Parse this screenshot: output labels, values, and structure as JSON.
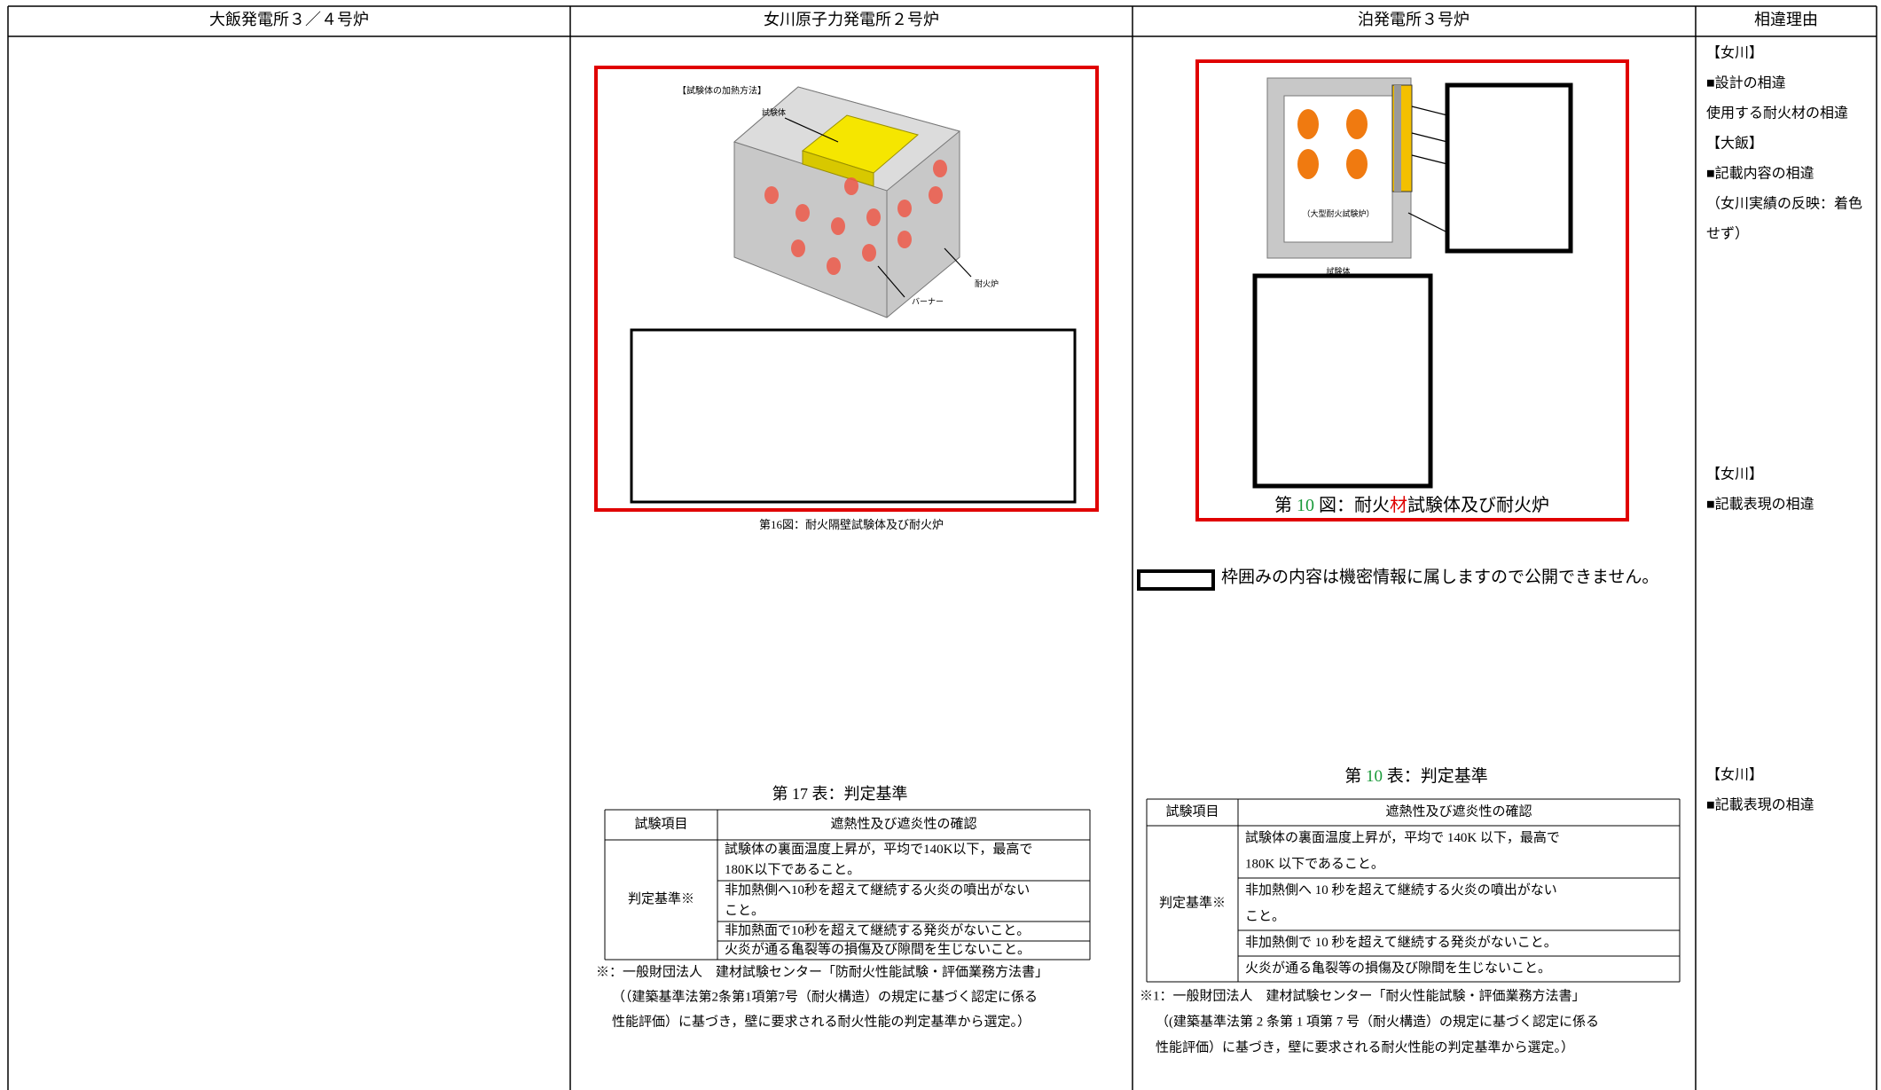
{
  "header": {
    "columns": [
      "大飯発電所３／４号炉",
      "女川原子力発電所２号炉",
      "泊発電所３号炉",
      "相違理由"
    ]
  },
  "onagawa_figure": {
    "heading": "【試験体の加熱方法】",
    "specimen": "試験体",
    "burner": "バーナー",
    "furnace": "耐火炉",
    "caption": "第16図：耐火隔壁試験体及び耐火炉"
  },
  "tomari_figure": {
    "furnace_label": "（大型耐火試験炉）",
    "specimen": "試験体",
    "caption_parts": [
      {
        "text": "第 ",
        "color": "#000000"
      },
      {
        "text": "10",
        "color": "#1a9a3a"
      },
      {
        "text": " 図：耐火",
        "color": "#000000"
      },
      {
        "text": "材",
        "color": "#e00000"
      },
      {
        "text": "試験体及び耐火炉",
        "color": "#000000"
      }
    ],
    "confidential_note": "枠囲みの内容は機密情報に属しますので公開できません。"
  },
  "reasons": {
    "row1": [
      [
        {
          "text": "【女川】",
          "color": "#e00000"
        },
        {
          "text": "■設計の相違",
          "color": "#e00000"
        },
        {
          "text": "使用する耐火材の相違",
          "color": "#e00000"
        },
        {
          "text": "【大飯】",
          "color": "#1aa0e0"
        },
        {
          "text": "■記載内容の相違",
          "color": "#1aa0e0"
        },
        {
          "text": "（女川実績の反映：着色",
          "color": "#1aa0e0"
        },
        {
          "text": "せず）",
          "color": "#1aa0e0"
        }
      ],
      [
        {
          "text": "【女川】",
          "color": "#1a9a3a"
        },
        {
          "text": "■記載表現の相違",
          "color": "#1a9a3a"
        }
      ]
    ],
    "row2": [
      [
        {
          "text": "【女川】",
          "color": "#1a9a3a"
        },
        {
          "text": "■記載表現の相違",
          "color": "#1a9a3a"
        }
      ]
    ]
  },
  "onagawa_table": {
    "title": "第 17 表：判定基準",
    "headers": [
      "試験項目",
      "遮熱性及び遮炎性の確認"
    ],
    "row_label": "判定基準※",
    "criteria": [
      [
        "試験体の裏面温度上昇が，平均で140K以下，最高で",
        "180K以下であること。"
      ],
      [
        "非加熱側へ10秒を超えて継続する火炎の噴出がない",
        "こと。"
      ],
      [
        "非加熱面で10秒を超えて継続する発炎がないこと。"
      ],
      [
        "火炎が通る亀裂等の損傷及び隙間を生じないこと。"
      ]
    ],
    "footnote": [
      "※：一般財団法人　建材試験センター「防耐火性能試験・評価業務方法書」",
      "（（建築基準法第2条第1項第7号（耐火構造）の規定に基づく認定に係る",
      "性能評価）に基づき，壁に要求される耐火性能の判定基準から選定。）"
    ]
  },
  "tomari_table": {
    "title_parts": [
      {
        "text": "第 ",
        "color": "#000000"
      },
      {
        "text": "10",
        "color": "#1a9a3a"
      },
      {
        "text": " 表：判定基準",
        "color": "#000000"
      }
    ],
    "headers": [
      "試験項目",
      "遮熱性及び遮炎性の確認"
    ],
    "row_label": "判定基準※",
    "criteria": [
      [
        "試験体の裏面温度上昇が，平均で 140K 以下，最高で",
        "180K 以下であること。"
      ],
      [
        "非加熱側へ 10 秒を超えて継続する火炎の噴出がない",
        "こと。"
      ],
      [
        "非加熱側で 10 秒を超えて継続する発炎がないこと。"
      ],
      [
        "火炎が通る亀裂等の損傷及び隙間を生じないこと。"
      ]
    ],
    "footnote": [
      "※1：一般財団法人　建材試験センター「耐火性能試験・評価業務方法書」",
      "（(建築基準法第 2 条第 1 項第 7 号（耐火構造）の規定に基づく認定に係る",
      "性能評価）に基づき，壁に要求される耐火性能の判定基準から選定。）"
    ]
  }
}
